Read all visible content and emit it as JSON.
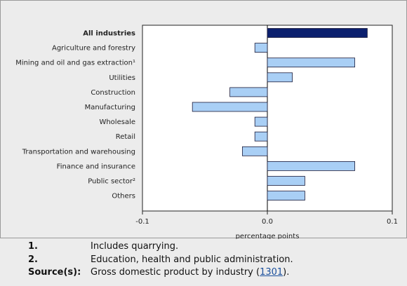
{
  "chart_data": {
    "type": "bar",
    "orientation": "horizontal",
    "title": "",
    "xlabel": "percentage points",
    "ylabel": "",
    "xlim": [
      -0.1,
      0.1
    ],
    "xticks": [
      "-0.1",
      "0.0",
      "0.1"
    ],
    "grid": false,
    "legend": "none",
    "categories": [
      "All industries",
      "Agriculture and forestry",
      "Mining and oil and gas extraction¹",
      "Utilities",
      "Construction",
      "Manufacturing",
      "Wholesale",
      "Retail",
      "Transportation and warehousing",
      "Finance and insurance",
      "Public sector²",
      "Others"
    ],
    "values": [
      0.08,
      -0.01,
      0.07,
      0.02,
      -0.03,
      -0.06,
      -0.01,
      -0.01,
      -0.02,
      0.07,
      0.03,
      0.03
    ],
    "highlight_index": 0,
    "colors": {
      "highlight": "#0b1f6e",
      "bar": "#a9cff5",
      "bar_stroke": "#1b1b3a",
      "plot_bg": "#ffffff",
      "frame_bg": "#ececec"
    }
  },
  "notes": [
    {
      "key": "1.",
      "text": "Includes quarrying."
    },
    {
      "key": "2.",
      "text": "Education, health and public administration."
    }
  ],
  "source": {
    "key": "Source(s):",
    "text_before": "Gross domestic product by industry (",
    "link_text": "1301",
    "text_after": ")."
  }
}
